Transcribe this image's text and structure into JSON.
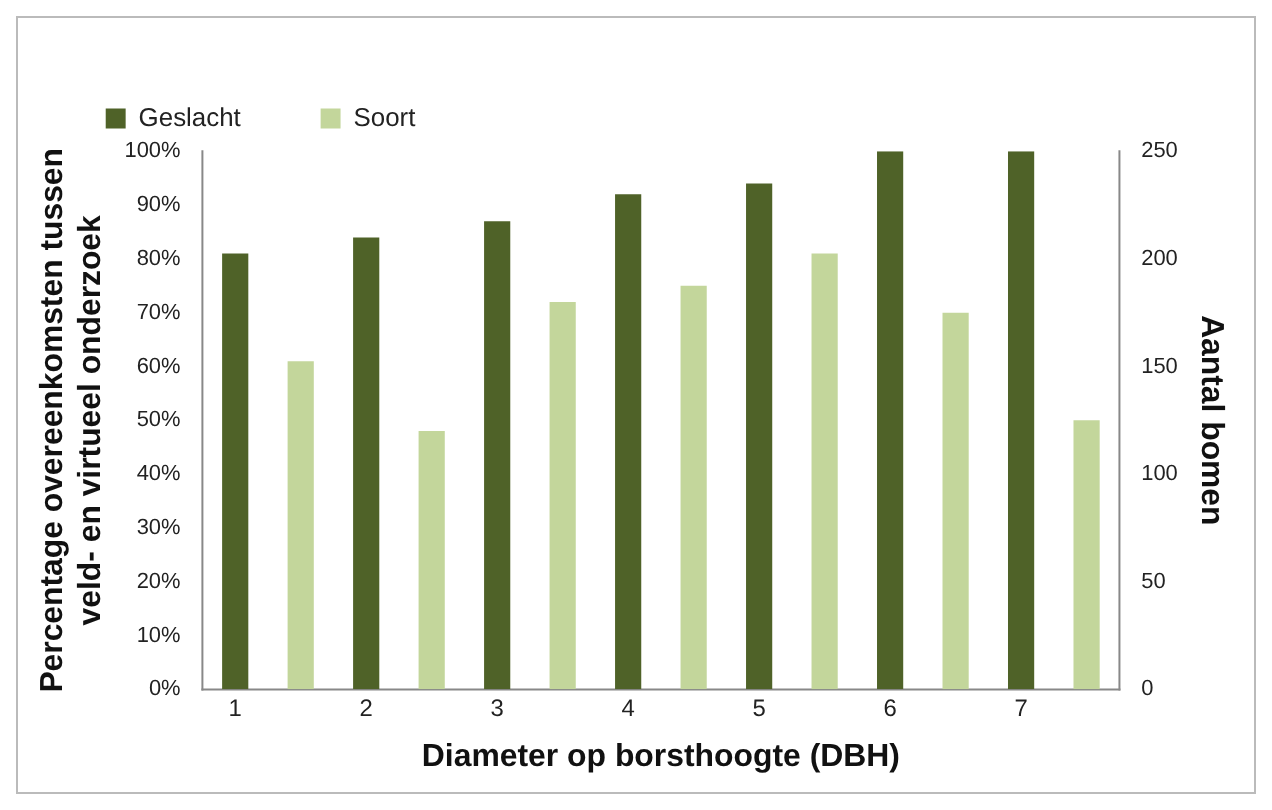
{
  "chart_data": {
    "type": "bar",
    "xlabel": "Diameter op borsthoogte (DBH)",
    "ylabel": "Percentage overeenkomsten tussen veld- en virtueel onderzoek",
    "y2label": "Aantal bomen",
    "categories": [
      "1",
      null,
      "2",
      null,
      "3",
      null,
      "4",
      null,
      "5",
      null,
      "6",
      null,
      "7",
      null
    ],
    "series": [
      {
        "name": "Geslacht",
        "color": "#4f6228",
        "values": [
          81,
          null,
          84,
          null,
          87,
          null,
          92,
          null,
          94,
          null,
          100,
          null,
          100,
          null
        ]
      },
      {
        "name": "Soort",
        "color": "#c3d69b",
        "values": [
          null,
          61,
          null,
          48,
          null,
          72,
          null,
          75,
          null,
          81,
          null,
          70,
          null,
          50
        ]
      }
    ],
    "ylim": [
      0,
      100
    ],
    "yticks": [
      {
        "value": 0,
        "label": "0%"
      },
      {
        "value": 10,
        "label": "10%"
      },
      {
        "value": 20,
        "label": "20%"
      },
      {
        "value": 30,
        "label": "30%"
      },
      {
        "value": 40,
        "label": "40%"
      },
      {
        "value": 50,
        "label": "50%"
      },
      {
        "value": 60,
        "label": "60%"
      },
      {
        "value": 70,
        "label": "70%"
      },
      {
        "value": 80,
        "label": "80%"
      },
      {
        "value": 90,
        "label": "90%"
      },
      {
        "value": 100,
        "label": "100%"
      }
    ],
    "y2lim": [
      0,
      250
    ],
    "y2ticks": [
      0,
      50,
      100,
      150,
      200,
      250
    ],
    "grid": false,
    "legend": "top left"
  }
}
